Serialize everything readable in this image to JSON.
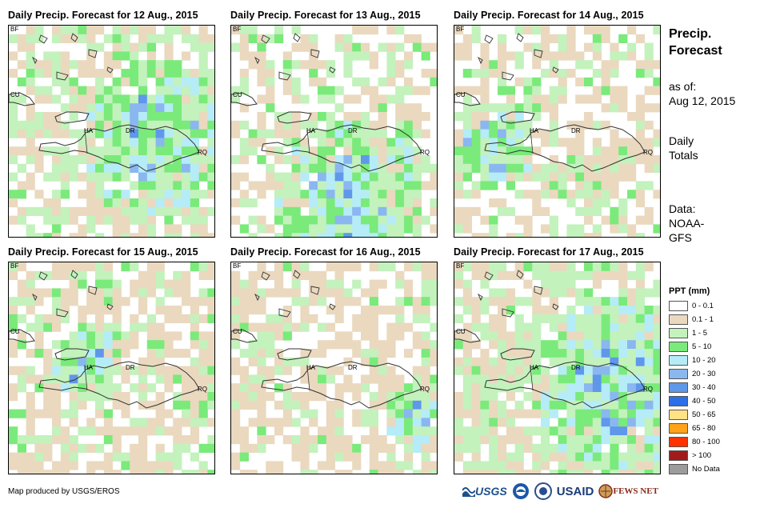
{
  "panels": [
    {
      "title": "Daily Precip. Forecast for 12 Aug., 2015"
    },
    {
      "title": "Daily Precip. Forecast for 13 Aug., 2015"
    },
    {
      "title": "Daily Precip. Forecast for 14 Aug., 2015"
    },
    {
      "title": "Daily Precip. Forecast for 15 Aug., 2015"
    },
    {
      "title": "Daily Precip. Forecast for 16 Aug., 2015"
    },
    {
      "title": "Daily Precip. Forecast for 17 Aug., 2015"
    }
  ],
  "map_labels": {
    "bf": "BF",
    "cu": "CU",
    "ha": "HA",
    "dr": "DR",
    "rq": "RQ"
  },
  "sidebar": {
    "title_line1": "Precip.",
    "title_line2": "Forecast",
    "asof_label": "as of:",
    "asof_date": "Aug 12, 2015",
    "totals_line1": "Daily",
    "totals_line2": "Totals",
    "data_line1": "Data:",
    "data_line2": "NOAA-",
    "data_line3": "GFS"
  },
  "legend": {
    "title": "PPT (mm)",
    "items": [
      {
        "label": "0 - 0.1",
        "color": "#ffffff"
      },
      {
        "label": "0.1 - 1",
        "color": "#ead9bf"
      },
      {
        "label": "1 - 5",
        "color": "#c3f2bd"
      },
      {
        "label": "5 - 10",
        "color": "#7aea7a"
      },
      {
        "label": "10 - 20",
        "color": "#b5ecf7"
      },
      {
        "label": "20 - 30",
        "color": "#8ab7ef"
      },
      {
        "label": "30 - 40",
        "color": "#5f97ea"
      },
      {
        "label": "40 - 50",
        "color": "#2c6fe6"
      },
      {
        "label": "50 - 65",
        "color": "#ffe285"
      },
      {
        "label": "65 - 80",
        "color": "#ffa31a"
      },
      {
        "label": "80 - 100",
        "color": "#ff3300"
      },
      {
        "label": "> 100",
        "color": "#a11b1b"
      },
      {
        "label": "No Data",
        "color": "#9c9c9c"
      }
    ]
  },
  "credit": "Map produced by USGS/EROS",
  "logos": {
    "usgs": "USGS",
    "usaid": "USAID",
    "fewsnet": "FEWS NET"
  }
}
